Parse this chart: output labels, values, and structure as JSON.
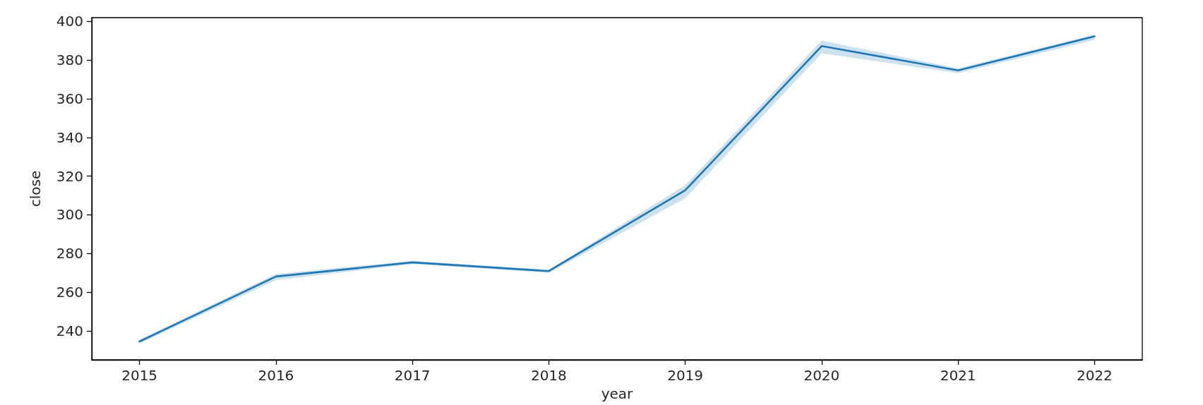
{
  "chart_data": {
    "type": "line",
    "xlabel": "year",
    "ylabel": "close",
    "x": [
      2015,
      2016,
      2017,
      2018,
      2019,
      2020,
      2021,
      2022
    ],
    "series": [
      {
        "color": "#1f77b4",
        "values": [
          234.5,
          268.1,
          275.4,
          270.9,
          312.7,
          387.3,
          374.7,
          392.3
        ],
        "lower": [
          233.5,
          266.2,
          274.5,
          270.0,
          308.6,
          383.6,
          373.3,
          390.5
        ],
        "upper": [
          235.5,
          269.4,
          276.2,
          271.6,
          315.4,
          390.1,
          375.8,
          393.3
        ]
      }
    ],
    "xlim": [
      2014.65,
      2022.35
    ],
    "ylim": [
      225,
      402
    ],
    "xticks": [
      2015,
      2016,
      2017,
      2018,
      2019,
      2020,
      2021,
      2022
    ],
    "yticks": [
      240,
      260,
      280,
      300,
      320,
      340,
      360,
      380,
      400
    ],
    "grid": false
  }
}
